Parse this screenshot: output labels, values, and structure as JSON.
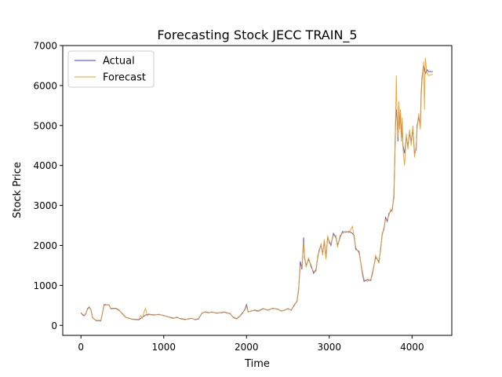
{
  "chart_data": {
    "type": "line",
    "title": "Forecasting Stock JECC TRAIN_5",
    "xlabel": "Time",
    "ylabel": "Stock Price",
    "xlim": [
      -220,
      4480
    ],
    "ylim": [
      -250,
      7000
    ],
    "xticks": [
      0,
      1000,
      2000,
      3000,
      4000
    ],
    "yticks": [
      0,
      1000,
      2000,
      3000,
      4000,
      5000,
      6000,
      7000
    ],
    "legend": "top-left",
    "grid": false,
    "series": [
      {
        "name": "Actual",
        "color": "#3b3bd6",
        "points": [
          [
            0,
            320
          ],
          [
            20,
            260
          ],
          [
            40,
            240
          ],
          [
            60,
            300
          ],
          [
            80,
            420
          ],
          [
            100,
            460
          ],
          [
            120,
            390
          ],
          [
            140,
            200
          ],
          [
            180,
            120
          ],
          [
            240,
            110
          ],
          [
            280,
            520
          ],
          [
            340,
            510
          ],
          [
            360,
            420
          ],
          [
            420,
            430
          ],
          [
            460,
            380
          ],
          [
            500,
            290
          ],
          [
            540,
            200
          ],
          [
            580,
            180
          ],
          [
            620,
            150
          ],
          [
            700,
            140
          ],
          [
            740,
            200
          ],
          [
            780,
            260
          ],
          [
            820,
            280
          ],
          [
            880,
            260
          ],
          [
            940,
            270
          ],
          [
            1000,
            250
          ],
          [
            1040,
            220
          ],
          [
            1080,
            200
          ],
          [
            1120,
            180
          ],
          [
            1160,
            200
          ],
          [
            1200,
            170
          ],
          [
            1260,
            150
          ],
          [
            1300,
            160
          ],
          [
            1340,
            180
          ],
          [
            1380,
            140
          ],
          [
            1420,
            160
          ],
          [
            1460,
            300
          ],
          [
            1500,
            340
          ],
          [
            1540,
            320
          ],
          [
            1580,
            330
          ],
          [
            1640,
            310
          ],
          [
            1700,
            320
          ],
          [
            1740,
            330
          ],
          [
            1760,
            310
          ],
          [
            1800,
            300
          ],
          [
            1840,
            200
          ],
          [
            1880,
            160
          ],
          [
            1920,
            230
          ],
          [
            1950,
            300
          ],
          [
            1980,
            400
          ],
          [
            2000,
            520
          ],
          [
            2020,
            340
          ],
          [
            2060,
            360
          ],
          [
            2100,
            380
          ],
          [
            2140,
            360
          ],
          [
            2200,
            420
          ],
          [
            2260,
            380
          ],
          [
            2320,
            430
          ],
          [
            2380,
            400
          ],
          [
            2420,
            360
          ],
          [
            2460,
            380
          ],
          [
            2500,
            420
          ],
          [
            2540,
            380
          ],
          [
            2580,
            520
          ],
          [
            2610,
            600
          ],
          [
            2630,
            900
          ],
          [
            2650,
            1600
          ],
          [
            2670,
            1400
          ],
          [
            2690,
            2200
          ],
          [
            2700,
            1700
          ],
          [
            2720,
            1500
          ],
          [
            2750,
            1650
          ],
          [
            2780,
            1500
          ],
          [
            2810,
            1300
          ],
          [
            2840,
            1400
          ],
          [
            2860,
            1700
          ],
          [
            2880,
            1900
          ],
          [
            2900,
            2000
          ],
          [
            2920,
            1800
          ],
          [
            2940,
            2100
          ],
          [
            2960,
            1700
          ],
          [
            2980,
            2200
          ],
          [
            3000,
            2100
          ],
          [
            3020,
            2000
          ],
          [
            3050,
            2300
          ],
          [
            3080,
            2200
          ],
          [
            3100,
            2000
          ],
          [
            3130,
            2200
          ],
          [
            3160,
            2350
          ],
          [
            3200,
            2330
          ],
          [
            3240,
            2350
          ],
          [
            3280,
            2300
          ],
          [
            3300,
            2250
          ],
          [
            3320,
            1900
          ],
          [
            3360,
            1850
          ],
          [
            3400,
            1300
          ],
          [
            3420,
            1100
          ],
          [
            3460,
            1150
          ],
          [
            3500,
            1120
          ],
          [
            3520,
            1300
          ],
          [
            3560,
            1700
          ],
          [
            3600,
            1600
          ],
          [
            3620,
            1900
          ],
          [
            3640,
            2300
          ],
          [
            3660,
            2400
          ],
          [
            3680,
            2700
          ],
          [
            3700,
            2600
          ],
          [
            3720,
            2800
          ],
          [
            3740,
            2850
          ],
          [
            3760,
            2900
          ],
          [
            3780,
            3200
          ],
          [
            3790,
            4000
          ],
          [
            3800,
            5000
          ],
          [
            3810,
            5400
          ],
          [
            3820,
            5200
          ],
          [
            3830,
            4600
          ],
          [
            3840,
            5500
          ],
          [
            3850,
            5000
          ],
          [
            3860,
            5300
          ],
          [
            3870,
            4700
          ],
          [
            3880,
            5100
          ],
          [
            3890,
            4500
          ],
          [
            3910,
            4300
          ],
          [
            3930,
            4700
          ],
          [
            3950,
            4500
          ],
          [
            3970,
            4800
          ],
          [
            3990,
            4600
          ],
          [
            4010,
            4900
          ],
          [
            4030,
            4300
          ],
          [
            4050,
            4400
          ],
          [
            4060,
            5000
          ],
          [
            4080,
            5200
          ],
          [
            4100,
            5000
          ],
          [
            4110,
            5800
          ],
          [
            4120,
            6200
          ],
          [
            4140,
            6500
          ],
          [
            4160,
            6300
          ],
          [
            4180,
            6400
          ],
          [
            4200,
            6350
          ],
          [
            4250,
            6350
          ]
        ]
      },
      {
        "name": "Forecast",
        "color": "#f0a01e",
        "points": [
          [
            0,
            300
          ],
          [
            20,
            280
          ],
          [
            40,
            250
          ],
          [
            60,
            310
          ],
          [
            80,
            400
          ],
          [
            100,
            450
          ],
          [
            120,
            380
          ],
          [
            140,
            190
          ],
          [
            180,
            130
          ],
          [
            240,
            120
          ],
          [
            280,
            500
          ],
          [
            340,
            520
          ],
          [
            360,
            410
          ],
          [
            420,
            420
          ],
          [
            460,
            370
          ],
          [
            500,
            300
          ],
          [
            540,
            210
          ],
          [
            580,
            170
          ],
          [
            620,
            160
          ],
          [
            700,
            150
          ],
          [
            720,
            250
          ],
          [
            740,
            180
          ],
          [
            760,
            320
          ],
          [
            780,
            430
          ],
          [
            800,
            240
          ],
          [
            820,
            270
          ],
          [
            880,
            250
          ],
          [
            940,
            280
          ],
          [
            1000,
            240
          ],
          [
            1040,
            230
          ],
          [
            1080,
            190
          ],
          [
            1120,
            170
          ],
          [
            1160,
            210
          ],
          [
            1200,
            160
          ],
          [
            1260,
            140
          ],
          [
            1300,
            170
          ],
          [
            1340,
            170
          ],
          [
            1380,
            150
          ],
          [
            1420,
            170
          ],
          [
            1460,
            310
          ],
          [
            1500,
            330
          ],
          [
            1540,
            310
          ],
          [
            1580,
            340
          ],
          [
            1640,
            300
          ],
          [
            1700,
            330
          ],
          [
            1740,
            340
          ],
          [
            1760,
            320
          ],
          [
            1800,
            290
          ],
          [
            1840,
            210
          ],
          [
            1880,
            170
          ],
          [
            1920,
            240
          ],
          [
            1950,
            320
          ],
          [
            1980,
            380
          ],
          [
            2000,
            480
          ],
          [
            2020,
            330
          ],
          [
            2060,
            370
          ],
          [
            2100,
            370
          ],
          [
            2140,
            350
          ],
          [
            2200,
            410
          ],
          [
            2260,
            390
          ],
          [
            2320,
            420
          ],
          [
            2380,
            410
          ],
          [
            2420,
            350
          ],
          [
            2460,
            390
          ],
          [
            2500,
            410
          ],
          [
            2540,
            390
          ],
          [
            2580,
            500
          ],
          [
            2610,
            620
          ],
          [
            2630,
            950
          ],
          [
            2650,
            1500
          ],
          [
            2670,
            1450
          ],
          [
            2690,
            2100
          ],
          [
            2700,
            1750
          ],
          [
            2720,
            1450
          ],
          [
            2750,
            1700
          ],
          [
            2780,
            1450
          ],
          [
            2810,
            1350
          ],
          [
            2840,
            1350
          ],
          [
            2860,
            1750
          ],
          [
            2880,
            1850
          ],
          [
            2900,
            2050
          ],
          [
            2920,
            1750
          ],
          [
            2940,
            2150
          ],
          [
            2960,
            1650
          ],
          [
            2980,
            2250
          ],
          [
            3000,
            2050
          ],
          [
            3020,
            2050
          ],
          [
            3050,
            2250
          ],
          [
            3080,
            2250
          ],
          [
            3100,
            1950
          ],
          [
            3130,
            2250
          ],
          [
            3160,
            2300
          ],
          [
            3200,
            2350
          ],
          [
            3240,
            2320
          ],
          [
            3280,
            2480
          ],
          [
            3300,
            2200
          ],
          [
            3320,
            1950
          ],
          [
            3360,
            1800
          ],
          [
            3400,
            1350
          ],
          [
            3420,
            1150
          ],
          [
            3460,
            1100
          ],
          [
            3500,
            1150
          ],
          [
            3520,
            1250
          ],
          [
            3560,
            1750
          ],
          [
            3600,
            1550
          ],
          [
            3620,
            1950
          ],
          [
            3640,
            2250
          ],
          [
            3660,
            2450
          ],
          [
            3680,
            2650
          ],
          [
            3700,
            2650
          ],
          [
            3720,
            2750
          ],
          [
            3740,
            2900
          ],
          [
            3760,
            2850
          ],
          [
            3780,
            3300
          ],
          [
            3790,
            4100
          ],
          [
            3800,
            5100
          ],
          [
            3810,
            6250
          ],
          [
            3820,
            5100
          ],
          [
            3830,
            4700
          ],
          [
            3840,
            5600
          ],
          [
            3850,
            4900
          ],
          [
            3860,
            5400
          ],
          [
            3870,
            4600
          ],
          [
            3880,
            5200
          ],
          [
            3890,
            4400
          ],
          [
            3910,
            4000
          ],
          [
            3930,
            4800
          ],
          [
            3950,
            4400
          ],
          [
            3970,
            4900
          ],
          [
            3990,
            4500
          ],
          [
            4010,
            5000
          ],
          [
            4030,
            4200
          ],
          [
            4050,
            4500
          ],
          [
            4060,
            4900
          ],
          [
            4080,
            5300
          ],
          [
            4100,
            4900
          ],
          [
            4110,
            5700
          ],
          [
            4120,
            6100
          ],
          [
            4140,
            6600
          ],
          [
            4150,
            5400
          ],
          [
            4160,
            6700
          ],
          [
            4180,
            6300
          ],
          [
            4200,
            6250
          ],
          [
            4250,
            6280
          ]
        ]
      }
    ]
  }
}
